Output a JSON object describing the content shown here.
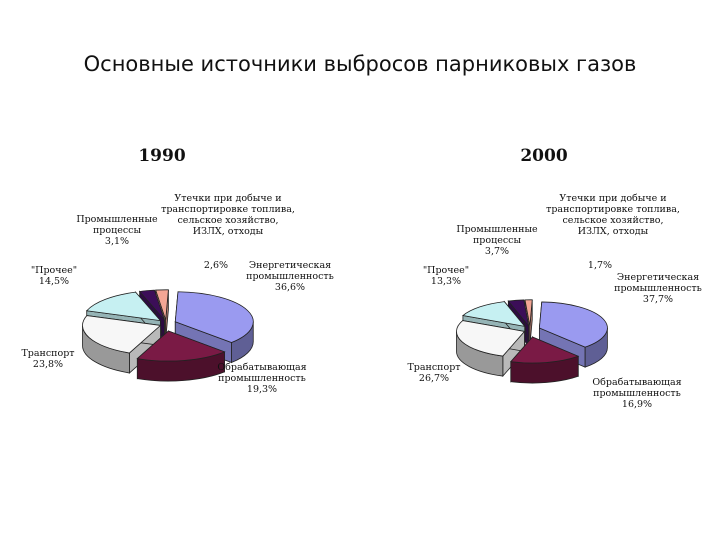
{
  "slide": {
    "title": "Основные источники выбросов парниковых газов"
  },
  "chart_data": [
    {
      "type": "pie",
      "title": "1990",
      "categories": [
        "Энергетическая промышленность",
        "Обрабатывающая промышленность",
        "Транспорт",
        "\"Прочее\"",
        "Промышленные процессы",
        "Утечки при добыче и транспортировке топлива, сельское хозяйство, ИЗЛХ, отходы"
      ],
      "values": [
        36.6,
        19.3,
        23.8,
        14.5,
        3.1,
        2.6
      ],
      "value_labels": [
        "36,6%",
        "19,3%",
        "23,8%",
        "14,5%",
        "3,1%",
        "2,6%"
      ],
      "label_lines": [
        [
          "Энергетическая",
          "промышленность"
        ],
        [
          "Обрабатывающая",
          "промышленность"
        ],
        [
          "Транспорт"
        ],
        [
          "\"Прочее\""
        ],
        [
          "Промышленные",
          "процессы"
        ],
        [
          "Утечки при добыче и",
          "транспортировке топлива,",
          "сельское хозяйство,",
          "ИЗЛХ, отходы"
        ]
      ]
    },
    {
      "type": "pie",
      "title": "2000",
      "categories": [
        "Энергетическая промышленность",
        "Обрабатывающая промышленность",
        "Транспорт",
        "\"Прочее\"",
        "Промышленные процессы",
        "Утечки при добыче и транспортировке топлива, сельское хозяйство, ИЗЛХ, отходы"
      ],
      "values": [
        37.7,
        16.9,
        26.7,
        13.3,
        3.7,
        1.7
      ],
      "value_labels": [
        "37,7%",
        "16,9%",
        "26,7%",
        "13,3%",
        "3,7%",
        "1,7%"
      ],
      "label_lines": [
        [
          "Энергетическая",
          "промышленность"
        ],
        [
          "Обрабатывающая",
          "промышленность"
        ],
        [
          "Транспорт"
        ],
        [
          "\"Прочее\""
        ],
        [
          "Промышленные",
          "процессы"
        ],
        [
          "Утечки при добыче и",
          "транспортировке топлива,",
          "сельское хозяйство,",
          "ИЗЛХ, отходы"
        ]
      ]
    }
  ],
  "colors": [
    "#9a9af0",
    "#7a1a45",
    "#f7f7f7",
    "#c6f0f2",
    "#3c0e58",
    "#f3a695"
  ]
}
